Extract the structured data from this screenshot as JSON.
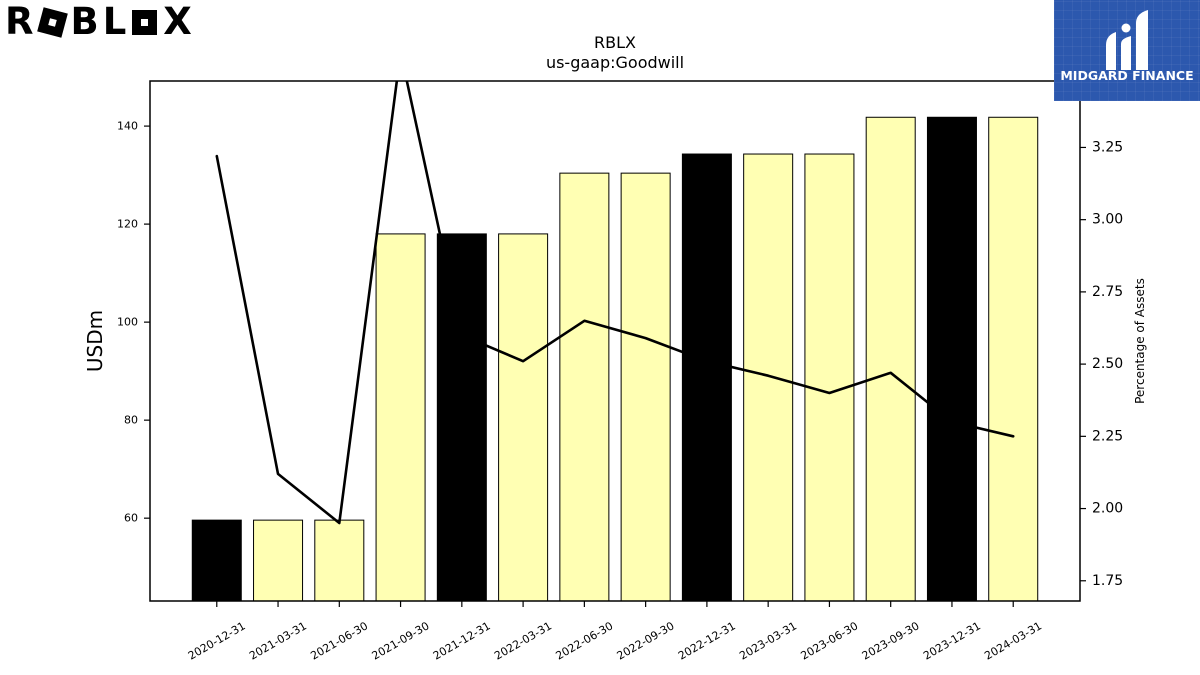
{
  "logos": {
    "roblox": {
      "text": "ROBLOX",
      "color": "#000000"
    },
    "midgard": {
      "text": "MIDGARD FINANCE",
      "icon": "midgard-icon",
      "background": "#2c58ae",
      "color": "#ffffff"
    }
  },
  "chart_data": {
    "type": "bar",
    "title": "RBLX",
    "subtitle": "us-gaap:Goodwill",
    "xlabel": "",
    "ylabel": "USDm",
    "y2label": "Percentage of Assets",
    "categories": [
      "2020-12-31",
      "2021-03-31",
      "2021-06-30",
      "2021-09-30",
      "2021-12-31",
      "2022-03-31",
      "2022-06-30",
      "2022-09-30",
      "2022-12-31",
      "2023-03-31",
      "2023-06-30",
      "2023-09-30",
      "2023-12-31",
      "2024-03-31"
    ],
    "series": [
      {
        "type": "bar",
        "axis": "left",
        "values": [
          59.6,
          59.6,
          59.6,
          118.0,
          118.0,
          118.0,
          130.4,
          130.4,
          134.3,
          134.3,
          134.3,
          141.8,
          141.8,
          141.8
        ],
        "colors": [
          "#000000",
          "#ffffb3",
          "#ffffb3",
          "#ffffb3",
          "#000000",
          "#ffffb3",
          "#ffffb3",
          "#ffffb3",
          "#000000",
          "#ffffb3",
          "#ffffb3",
          "#ffffb3",
          "#000000",
          "#ffffb3"
        ],
        "edgecolor": "#000000"
      },
      {
        "type": "line",
        "axis": "right",
        "values": [
          3.22,
          2.12,
          1.95,
          3.58,
          2.6,
          2.51,
          2.65,
          2.59,
          2.51,
          2.46,
          2.4,
          2.47,
          2.3,
          2.25
        ],
        "color": "#000000"
      }
    ],
    "ylim": [
      43.1,
      149.2
    ],
    "y2lim": [
      1.68,
      3.48
    ],
    "yticks": [
      60,
      80,
      100,
      120,
      140
    ],
    "y2ticks": [
      "1.75",
      "2.00",
      "2.25",
      "2.50",
      "2.75",
      "3.00",
      "3.25"
    ],
    "grid": false
  }
}
